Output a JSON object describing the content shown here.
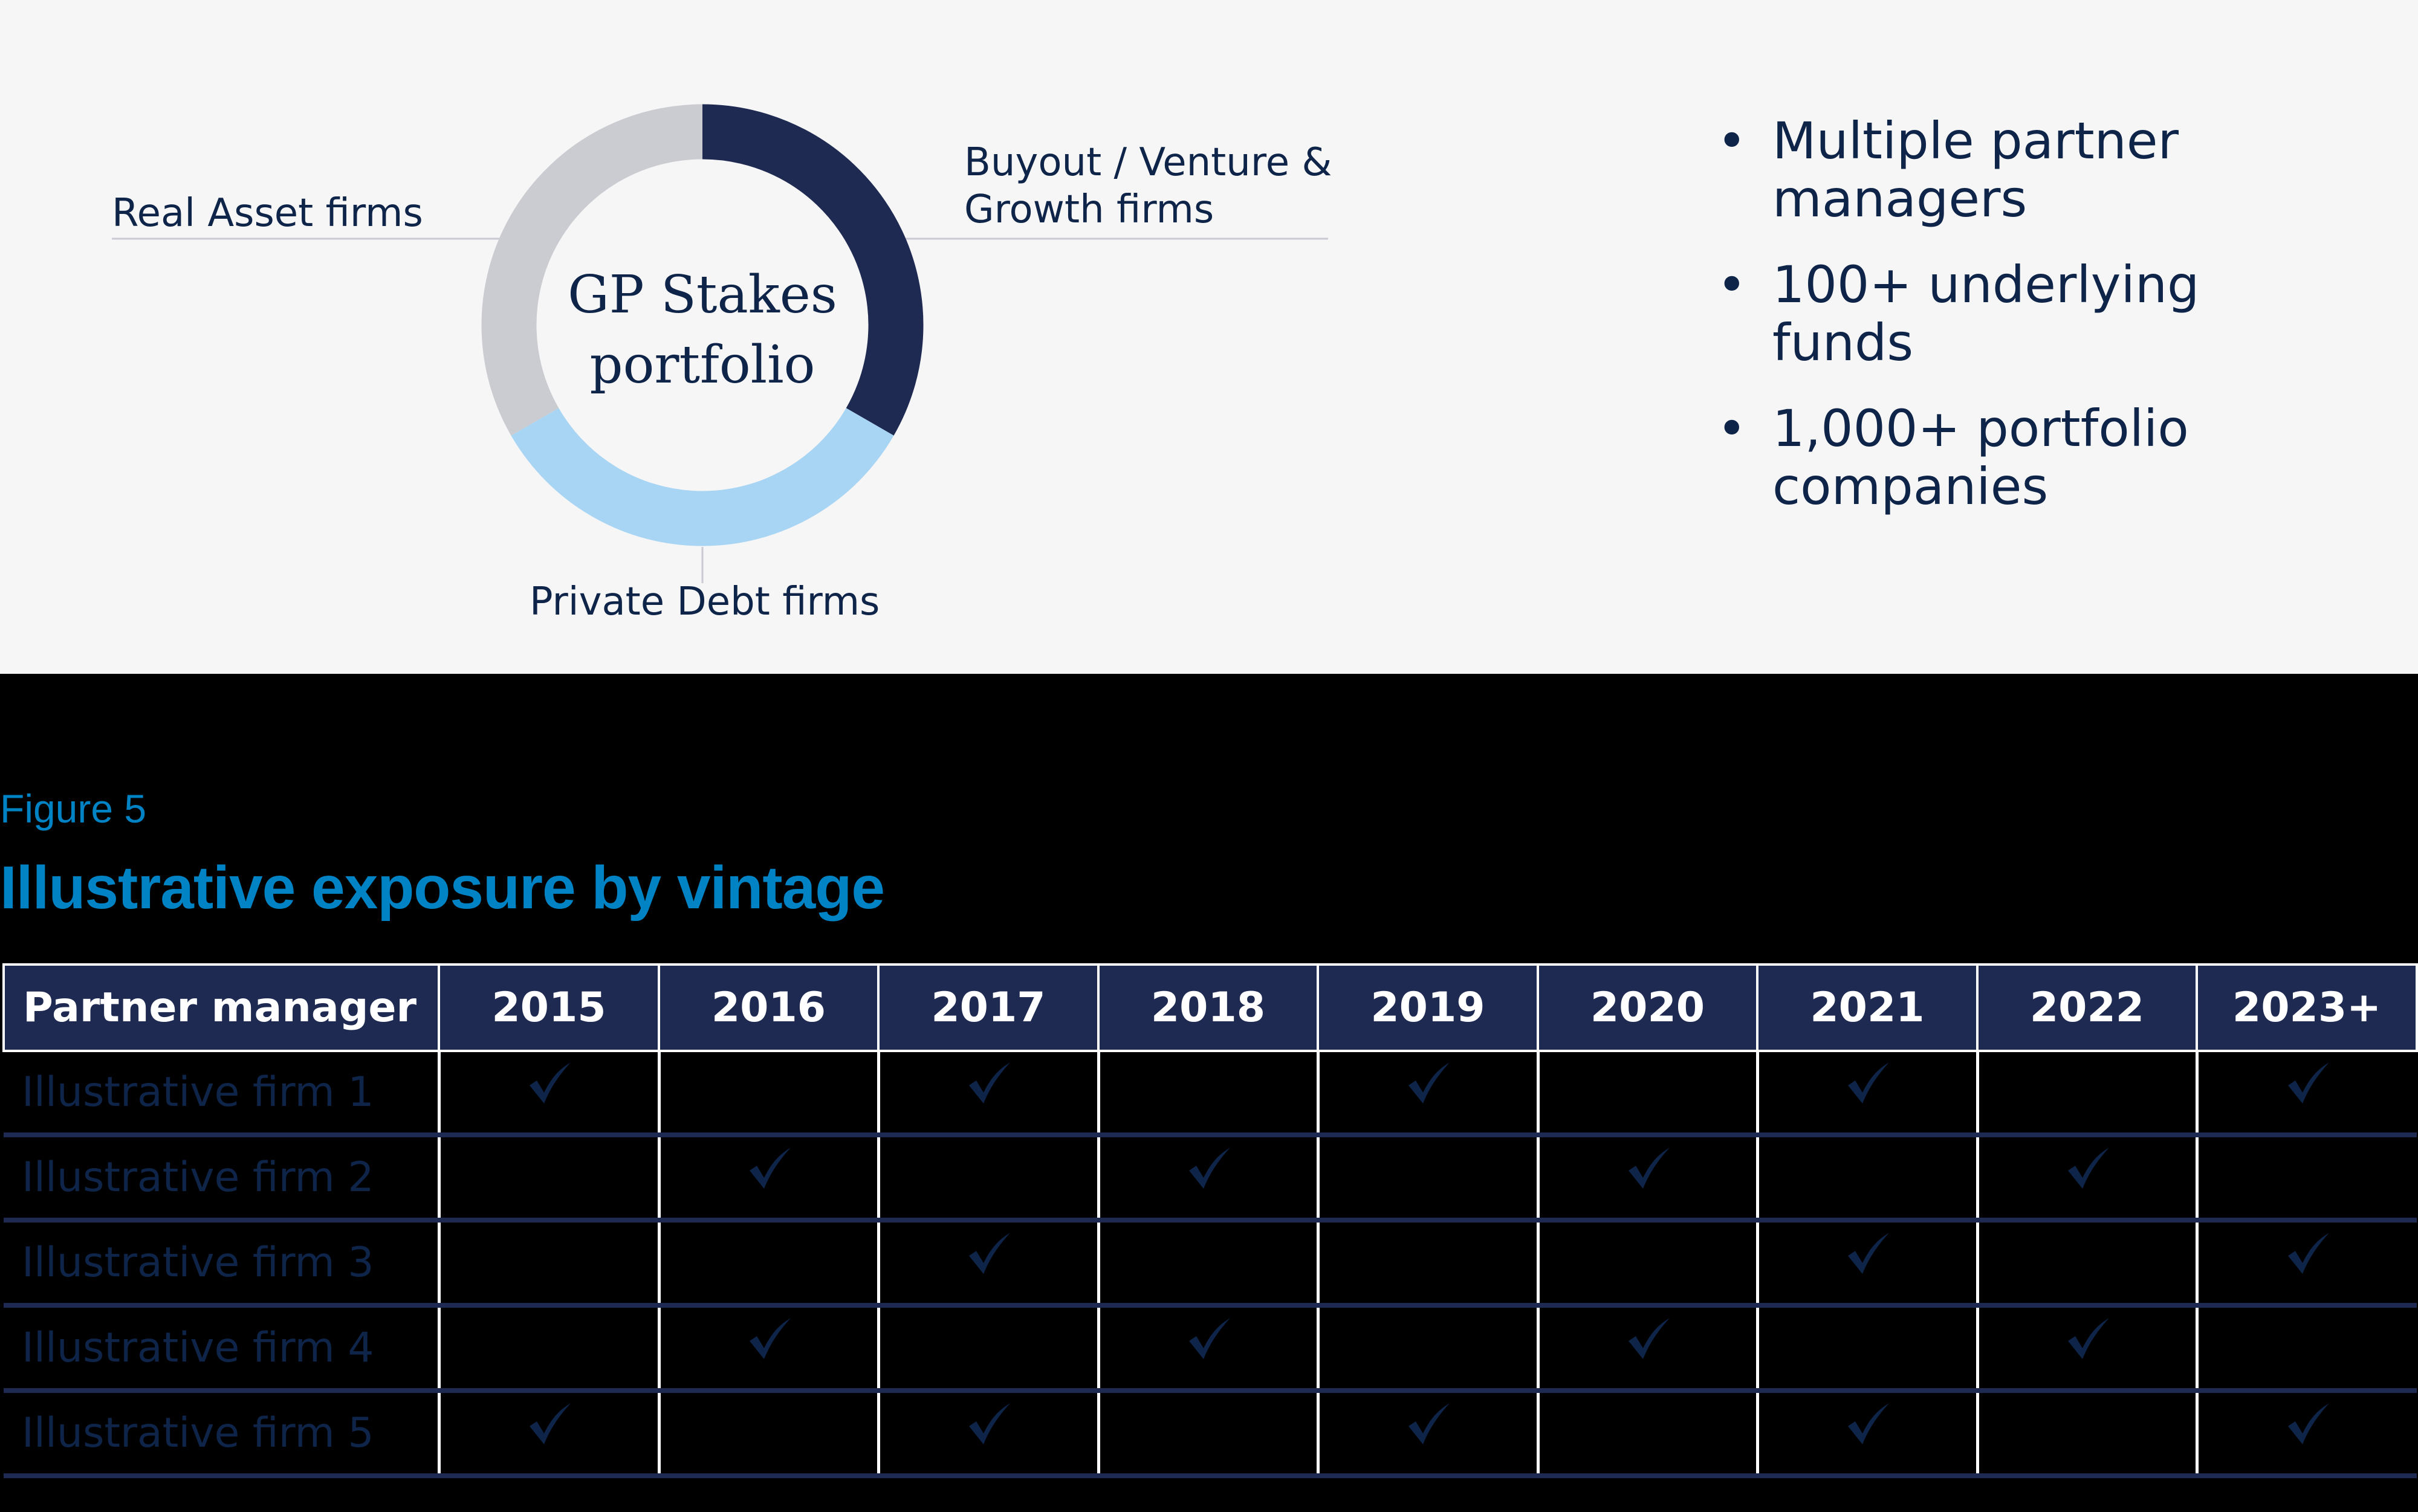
{
  "diagram": {
    "center_label_line1": "GP Stakes",
    "center_label_line2": "portfolio",
    "segments": [
      {
        "label_line1": "Buyout / Venture &",
        "label_line2": "Growth firms",
        "color": "#1f2a52",
        "start_deg": 0,
        "end_deg": 120
      },
      {
        "label_line1": "Private Debt firms",
        "label_line2": "",
        "color": "#a8d5f3",
        "start_deg": 120,
        "end_deg": 240
      },
      {
        "label_line1": "Real Asset firms",
        "label_line2": "",
        "color": "#cbccd1",
        "start_deg": 240,
        "end_deg": 360
      }
    ]
  },
  "bullets": [
    {
      "line1": "Multiple partner",
      "line2": "managers"
    },
    {
      "line1": "100+ underlying",
      "line2": "funds"
    },
    {
      "line1": "1,000+ portfolio",
      "line2": "companies"
    }
  ],
  "bullet_glyph": "•",
  "figure": {
    "label": "Figure 5",
    "title": "Illustrative exposure by vintage"
  },
  "table": {
    "headers": [
      "Partner manager",
      "2015",
      "2016",
      "2017",
      "2018",
      "2019",
      "2020",
      "2021",
      "2022",
      "2023+"
    ],
    "check_icon": "checkmark-icon",
    "rows": [
      {
        "name": "Illustrative firm 1",
        "checks": [
          true,
          false,
          true,
          false,
          true,
          false,
          true,
          false,
          true
        ]
      },
      {
        "name": "Illustrative firm 2",
        "checks": [
          false,
          true,
          false,
          true,
          false,
          true,
          false,
          true,
          false
        ]
      },
      {
        "name": "Illustrative firm 3",
        "checks": [
          false,
          false,
          true,
          false,
          false,
          false,
          true,
          false,
          true
        ]
      },
      {
        "name": "Illustrative firm 4",
        "checks": [
          false,
          true,
          false,
          true,
          false,
          true,
          false,
          true,
          false
        ]
      },
      {
        "name": "Illustrative firm 5",
        "checks": [
          true,
          false,
          true,
          false,
          true,
          false,
          true,
          false,
          true
        ]
      }
    ]
  },
  "colors": {
    "navy": "#1f2a52",
    "text_navy": "#0e2449",
    "accent_blue": "#0083c4",
    "light_blue": "#a8d5f3",
    "gray": "#cbccd1",
    "panel_bg": "#f6f6f6"
  }
}
